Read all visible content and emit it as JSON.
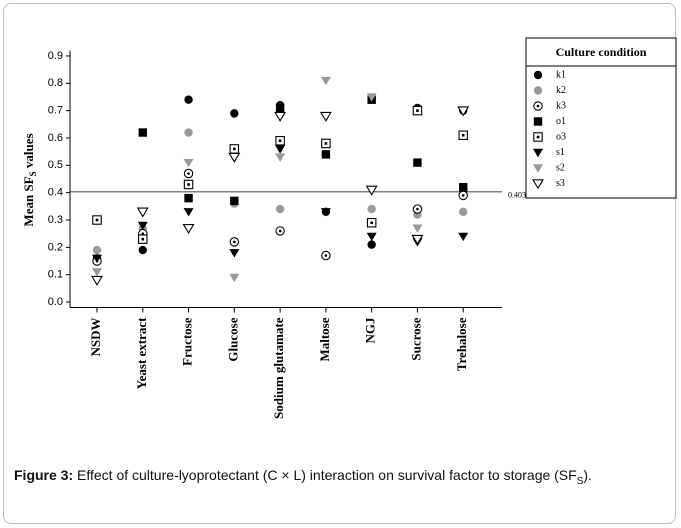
{
  "chart_data": {
    "type": "scatter",
    "y_label": {
      "main": "Mean SF",
      "sub": "S",
      "rest": " values"
    },
    "categories": [
      "NSDW",
      "Yeast extract",
      "Fructose",
      "Glucose",
      "Sodium glutamate",
      "Maltose",
      "NGJ",
      "Sucrose",
      "Trehalose"
    ],
    "ylim": [
      -0.02,
      0.92
    ],
    "yticks": [
      {
        "value": 0,
        "label": "0.0"
      },
      0.1,
      0.2,
      0.3,
      0.4,
      0.5,
      0.6,
      0.7,
      0.8,
      0.9
    ],
    "reference_line": 0.403,
    "legend_title": "Culture condition",
    "series": [
      {
        "name": "k1",
        "color": "#000000",
        "marker": "circle",
        "values": [
          0.16,
          0.19,
          0.74,
          0.69,
          0.72,
          0.33,
          0.21,
          0.71,
          0.7
        ]
      },
      {
        "name": "k2",
        "color": "#999999",
        "marker": "circle",
        "values": [
          0.19,
          0.27,
          0.62,
          0.36,
          0.34,
          0.17,
          0.34,
          0.32,
          0.33
        ]
      },
      {
        "name": "k3",
        "color": "#000000",
        "marker": "circle-dot",
        "values": [
          0.15,
          0.25,
          0.47,
          0.22,
          0.26,
          0.17,
          0.29,
          0.34,
          0.39
        ]
      },
      {
        "name": "o1",
        "color": "#000000",
        "marker": "square",
        "values": [
          0.3,
          0.62,
          0.38,
          0.37,
          0.71,
          0.54,
          0.74,
          0.51,
          0.42
        ]
      },
      {
        "name": "o3",
        "color": "#000000",
        "marker": "square-dot",
        "values": [
          0.3,
          0.23,
          0.43,
          0.56,
          0.59,
          0.58,
          0.29,
          0.7,
          0.61
        ]
      },
      {
        "name": "s1",
        "color": "#000000",
        "marker": "triangle",
        "values": [
          0.16,
          0.28,
          0.33,
          0.18,
          0.56,
          0.33,
          0.24,
          0.22,
          0.24
        ]
      },
      {
        "name": "s2",
        "color": "#999999",
        "marker": "triangle",
        "values": [
          0.11,
          0.33,
          0.51,
          0.09,
          0.53,
          0.81,
          0.75,
          0.27,
          0.7
        ]
      },
      {
        "name": "s3",
        "color": "#000000",
        "marker": "triangle-open",
        "values": [
          0.08,
          0.33,
          0.27,
          0.53,
          0.68,
          0.68,
          0.41,
          0.23,
          0.7
        ]
      }
    ]
  },
  "caption": {
    "label": "Figure 3:",
    "text": " Effect of culture-lyoprotectant (C × L) interaction on survival factor to storage (SF",
    "sub": "S",
    "end": ")."
  }
}
